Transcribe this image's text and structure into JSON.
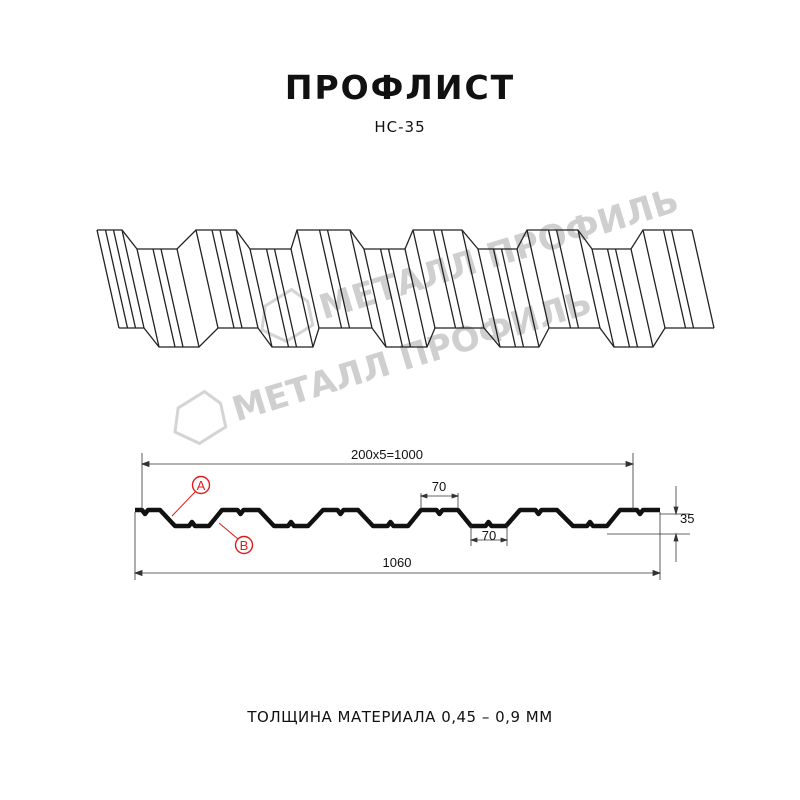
{
  "title": "ПРОФЛИСТ",
  "subtitle": "НС-35",
  "footer": "ТОЛЩИНА МАТЕРИАЛА 0,45 – 0,9 ММ",
  "watermark": "МЕТАЛЛ ПРОФИЛЬ",
  "dimensions": {
    "pitch_total": "200x5=1000",
    "crest_width": "70",
    "valley_width": "70",
    "height": "35",
    "total_width": "1060"
  },
  "markers": {
    "a": "A",
    "b": "B"
  },
  "colors": {
    "profile": "#111111",
    "marker": "#e21b1b",
    "watermark": "#cfcfcf"
  }
}
